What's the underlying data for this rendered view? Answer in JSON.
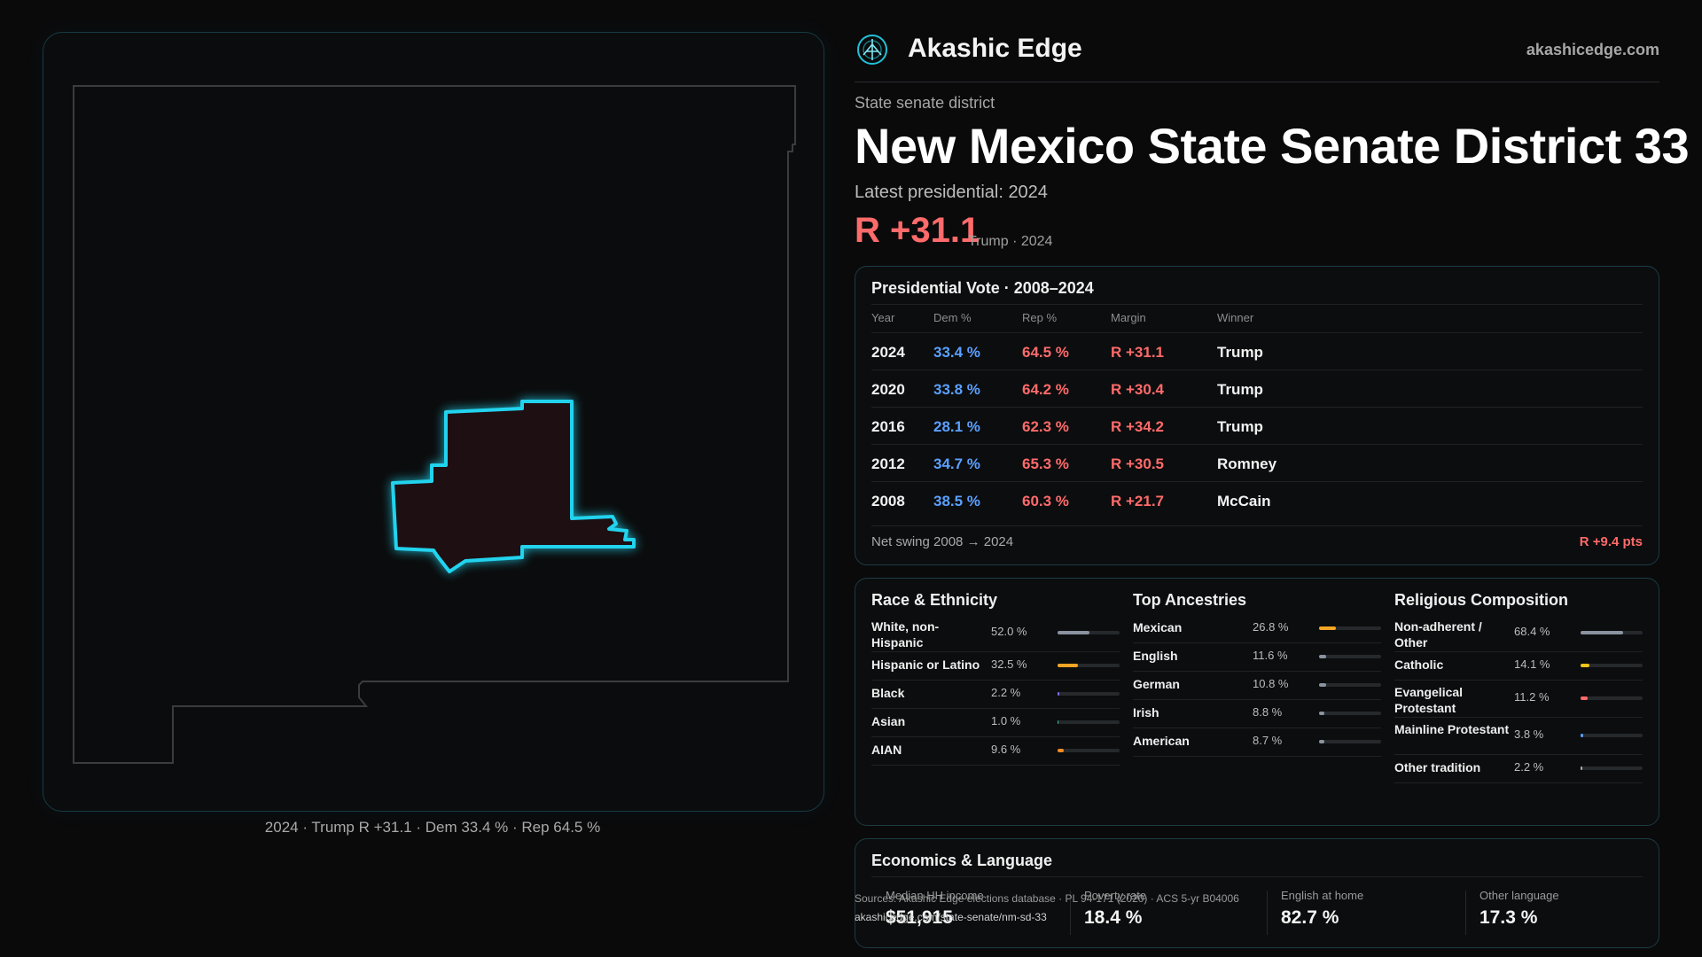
{
  "brand": {
    "name": "Akashic Edge",
    "url": "akashicedge.com",
    "logo_icon": "akashic-edge-logo-icon"
  },
  "district": {
    "type_label": "State senate district",
    "title": "New Mexico State Senate District 33",
    "latest_label": "Latest presidential: 2024",
    "margin": "R +31.1",
    "margin_sub": "Trump · 2024"
  },
  "map": {
    "caption": "2024 · Trump R +31.1 · Dem 33.4 % · Rep 64.5 %",
    "district_outline_color": "#22d3ee",
    "district_fill": "#1e0f12"
  },
  "presidential": {
    "title": "Presidential Vote · 2008–2024",
    "headers": {
      "year": "Year",
      "dem": "Dem %",
      "rep": "Rep %",
      "margin": "Margin",
      "winner": "Winner"
    },
    "rows": [
      {
        "year": "2024",
        "dem": "33.4 %",
        "rep": "64.5 %",
        "margin": "R +31.1",
        "winner": "Trump"
      },
      {
        "year": "2020",
        "dem": "33.8 %",
        "rep": "64.2 %",
        "margin": "R +30.4",
        "winner": "Trump"
      },
      {
        "year": "2016",
        "dem": "28.1 %",
        "rep": "62.3 %",
        "margin": "R +34.2",
        "winner": "Trump"
      },
      {
        "year": "2012",
        "dem": "34.7 %",
        "rep": "65.3 %",
        "margin": "R +30.5",
        "winner": "Romney"
      },
      {
        "year": "2008",
        "dem": "38.5 %",
        "rep": "60.3 %",
        "margin": "R +21.7",
        "winner": "McCain"
      }
    ],
    "swing_label": "Net swing 2008 → 2024",
    "swing_value": "R +9.4 pts"
  },
  "race": {
    "title": "Race & Ethnicity",
    "rows": [
      {
        "label": "White, non-Hispanic",
        "pct": "52.0 %",
        "share": 0.52,
        "color": "#8a93a0"
      },
      {
        "label": "Hispanic or Latino",
        "pct": "32.5 %",
        "share": 0.325,
        "color": "#f5a524"
      },
      {
        "label": "Black",
        "pct": "2.2 %",
        "share": 0.022,
        "color": "#7b6cf6"
      },
      {
        "label": "Asian",
        "pct": "1.0 %",
        "share": 0.01,
        "color": "#2fbf8f"
      },
      {
        "label": "AIAN",
        "pct": "9.6 %",
        "share": 0.096,
        "color": "#f08a24"
      }
    ]
  },
  "ancestry": {
    "title": "Top Ancestries",
    "rows": [
      {
        "label": "Mexican",
        "pct": "26.8 %",
        "share": 0.268,
        "color": "#f5a524"
      },
      {
        "label": "English",
        "pct": "11.6 %",
        "share": 0.116,
        "color": "#8a93a0"
      },
      {
        "label": "German",
        "pct": "10.8 %",
        "share": 0.108,
        "color": "#8a93a0"
      },
      {
        "label": "Irish",
        "pct": "8.8 %",
        "share": 0.088,
        "color": "#8a93a0"
      },
      {
        "label": "American",
        "pct": "8.7 %",
        "share": 0.087,
        "color": "#8a93a0"
      }
    ]
  },
  "religion": {
    "title": "Religious Composition",
    "rows": [
      {
        "label": "Non-adherent / Other",
        "pct": "68.4 %",
        "share": 0.684,
        "color": "#8a93a0"
      },
      {
        "label": "Catholic",
        "pct": "14.1 %",
        "share": 0.141,
        "color": "#f5c518"
      },
      {
        "label": "Evangelical Protestant",
        "pct": "11.2 %",
        "share": 0.112,
        "color": "#ff6b6b"
      },
      {
        "label": "Mainline Protestant",
        "pct": "3.8 %",
        "share": 0.038,
        "color": "#5aa0ff"
      },
      {
        "label": "Other tradition",
        "pct": "2.2 %",
        "share": 0.022,
        "color": "#b0b0b0"
      }
    ]
  },
  "economics": {
    "title": "Economics & Language",
    "cells": [
      {
        "label": "Median HH income",
        "value": "$51,915"
      },
      {
        "label": "Poverty rate",
        "value": "18.4 %"
      },
      {
        "label": "English at home",
        "value": "82.7 %"
      },
      {
        "label": "Other language",
        "value": "17.3 %"
      }
    ]
  },
  "sources": {
    "line": "Sources: Akashic Edge elections database · PL 94-171 (2020) · ACS 5-yr B04006",
    "url": "akashicedge.com/state-senate/nm-sd-33"
  }
}
